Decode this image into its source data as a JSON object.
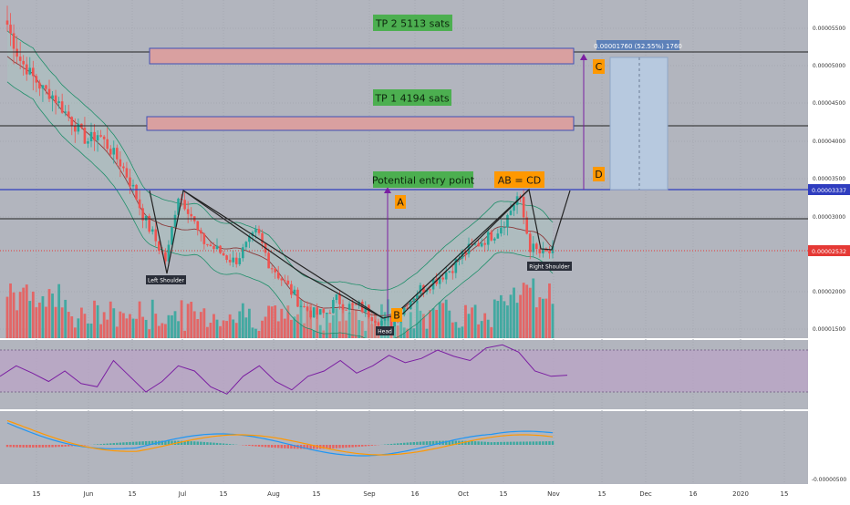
{
  "chart_data": [
    {
      "type": "candlestick",
      "panel": "price",
      "x_tick_labels": [
        "15",
        "Jun",
        "15",
        "Jul",
        "15",
        "Aug",
        "15",
        "Sep",
        "16",
        "Oct",
        "15",
        "Nov",
        "15",
        "Dec",
        "16",
        "2020",
        "15"
      ],
      "y_tick_labels": [
        "0.00005500",
        "0.00005000",
        "0.00004500",
        "0.00004000",
        "0.00003500",
        "0.00003000",
        "0.00002000",
        "0.00001500"
      ],
      "y_ticks": [
        5.5e-05,
        5e-05,
        4.5e-05,
        4e-05,
        3.5e-05,
        3e-05,
        2e-05,
        1.5e-05
      ],
      "price_badges": [
        {
          "label": "0.00003337",
          "value": 3.337e-05,
          "color": "#2f3dbf"
        },
        {
          "label": "0.00002532",
          "value": 2.532e-05,
          "color": "#e53935"
        }
      ],
      "horizontal_levels": [
        5.19e-05,
        4.19e-05,
        3.337e-05,
        2.97e-05
      ],
      "target_zones": [
        {
          "label": "TP 2 5113 sats",
          "from": 5.005e-05,
          "to": 5.2e-05
        },
        {
          "label": "TP 1 4194 sats",
          "from": 4.09e-05,
          "to": 4.26e-05
        }
      ],
      "annotations": {
        "tp2": "TP 2 5113 sats",
        "tp1": "TP 1 4194 sats",
        "entry": "Potential entry point",
        "abcd": "AB = CD",
        "point_a": "A",
        "point_b": "B",
        "point_c": "C",
        "point_d": "D",
        "left_shoulder": "Left Shoulder",
        "head": "Head",
        "right_shoulder": "Right Shoulder",
        "measure": "0.00001760 (52.55%) 1760"
      },
      "close_series_approx": [
        5.55e-05,
        5.1e-05,
        4.9e-05,
        4.7e-05,
        4.6e-05,
        4.4e-05,
        4.2e-05,
        4e-05,
        4.1e-05,
        3.9e-05,
        3.7e-05,
        3.4e-05,
        3e-05,
        2.7e-05,
        2.4e-05,
        3.3e-05,
        3.1e-05,
        2.7e-05,
        2.6e-05,
        2.5e-05,
        2.4e-05,
        2.6e-05,
        2.8e-05,
        2.4e-05,
        2.2e-05,
        2e-05,
        1.8e-05,
        1.7e-05,
        1.7e-05,
        1.9e-05,
        1.8e-05,
        1.8e-05,
        1.7e-05,
        1.6e-05,
        1.6e-05,
        1.8e-05,
        2e-05,
        2.1e-05,
        2.2e-05,
        2.3e-05,
        2.5e-05,
        2.6e-05,
        2.7e-05,
        2.8e-05,
        3e-05,
        3.3e-05,
        2.6e-05,
        2.5e-05,
        2.53e-05
      ],
      "colors": {
        "up": "#26a69a",
        "down": "#ef5350",
        "bollinger": "#1f8f6a",
        "ma": "#8a3a3a",
        "abcd": "#7b1fa2",
        "pattern": "#222222",
        "measure_fill": "#b7c9df"
      }
    },
    {
      "type": "line",
      "panel": "rsi",
      "band": [
        30,
        70
      ],
      "values_approx": [
        45,
        55,
        48,
        40,
        50,
        38,
        35,
        60,
        45,
        30,
        40,
        55,
        50,
        35,
        28,
        45,
        55,
        40,
        32,
        45,
        50,
        60,
        48,
        55,
        65,
        58,
        62,
        70,
        64,
        60,
        72,
        75,
        68,
        50,
        45,
        46
      ]
    },
    {
      "type": "histogram+line",
      "panel": "macd",
      "y_tick_labels": [
        "-0.00000500"
      ],
      "colors": {
        "macd": "#2196f3",
        "signal": "#ff9800",
        "hist_pos": "#26a69a",
        "hist_neg": "#ef5350"
      }
    }
  ]
}
